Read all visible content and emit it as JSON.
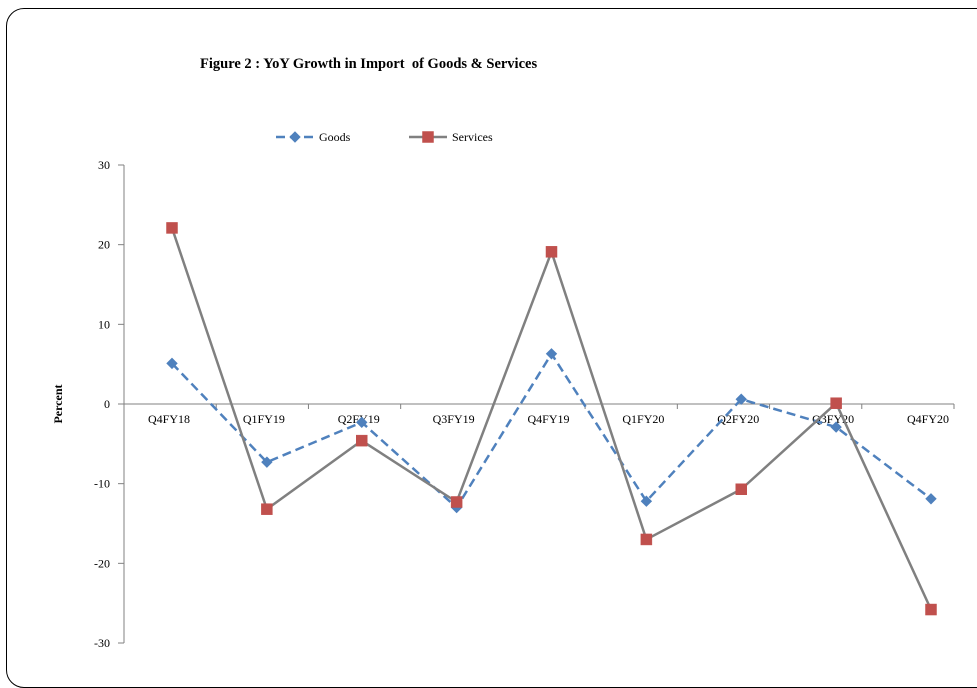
{
  "chart_data": {
    "type": "line",
    "title": "Figure 2 : YoY Growth in Import  of Goods & Services",
    "xlabel": "",
    "ylabel": "Percent",
    "ylim": [
      -30,
      30
    ],
    "yticks": [
      30,
      20,
      10,
      0,
      -10,
      -20,
      -30
    ],
    "categories": [
      "Q4FY18",
      "Q1FY19",
      "Q2FY19",
      "Q3FY19",
      "Q4FY19",
      "Q1FY20",
      "Q2FY20",
      "Q3FY20",
      "Q4FY20"
    ],
    "series": [
      {
        "name": "Goods",
        "values": [
          5.1,
          -7.3,
          -2.3,
          -13.0,
          6.3,
          -12.2,
          0.6,
          -2.9,
          -11.9
        ],
        "color": "#4F81BD",
        "line_style": "dashed",
        "marker": "diamond"
      },
      {
        "name": "Services",
        "values": [
          22.1,
          -13.2,
          -4.6,
          -12.3,
          19.1,
          -17.0,
          -10.7,
          0.1,
          -25.8
        ],
        "color": "#C0504D",
        "line_color": "#808080",
        "line_style": "solid",
        "marker": "square"
      }
    ],
    "legend": "top-left",
    "grid": false
  }
}
